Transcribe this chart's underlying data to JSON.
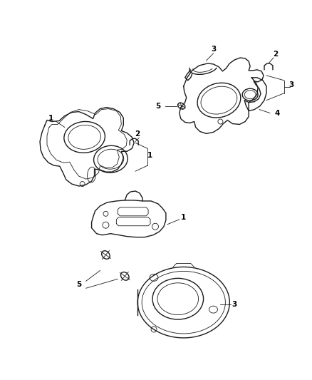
{
  "background_color": "#ffffff",
  "line_color": "#1a1a1a",
  "label_color": "#000000",
  "figsize": [
    4.38,
    5.33
  ],
  "dpi": 100,
  "lw_main": 1.0,
  "lw_thin": 0.6,
  "label_fs": 7.5
}
